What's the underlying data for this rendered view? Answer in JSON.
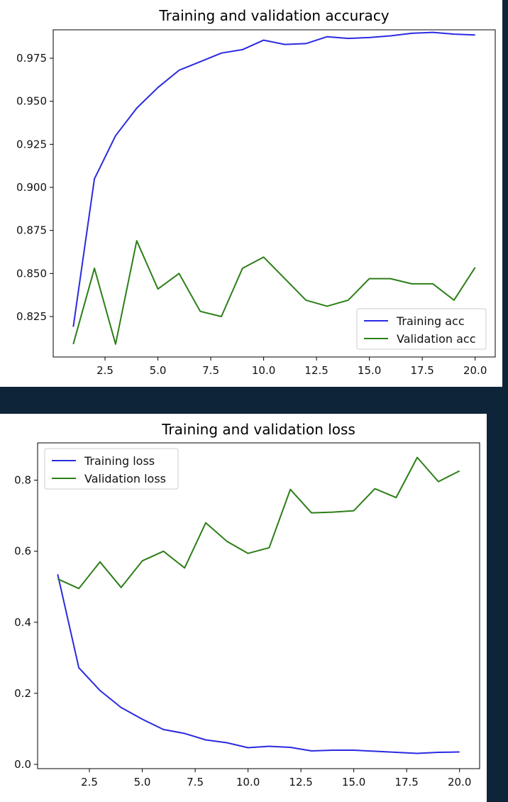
{
  "chart_data": [
    {
      "type": "line",
      "title": "Training and validation accuracy",
      "xlabel": "",
      "ylabel": "",
      "x": [
        1,
        2,
        3,
        4,
        5,
        6,
        7,
        8,
        9,
        10,
        11,
        12,
        13,
        14,
        15,
        16,
        17,
        18,
        19,
        20
      ],
      "xlim": [
        0.05,
        20.95
      ],
      "ylim": [
        0.8015,
        0.9915
      ],
      "xticks": [
        2.5,
        5.0,
        7.5,
        10.0,
        12.5,
        15.0,
        17.5,
        20.0
      ],
      "xtick_labels": [
        "2.5",
        "5.0",
        "7.5",
        "10.0",
        "12.5",
        "15.0",
        "17.5",
        "20.0"
      ],
      "yticks": [
        0.825,
        0.85,
        0.875,
        0.9,
        0.925,
        0.95,
        0.975
      ],
      "ytick_labels": [
        "0.825",
        "0.850",
        "0.875",
        "0.900",
        "0.925",
        "0.950",
        "0.975"
      ],
      "legend_position": "lower-right",
      "grid": false,
      "series": [
        {
          "name": "Training acc",
          "color": "#2a2ae0",
          "values": [
            0.819,
            0.905,
            0.93,
            0.946,
            0.958,
            0.968,
            0.973,
            0.978,
            0.98,
            0.9855,
            0.983,
            0.9835,
            0.9875,
            0.9865,
            0.987,
            0.988,
            0.9895,
            0.99,
            0.989,
            0.9885
          ]
        },
        {
          "name": "Validation acc",
          "color": "#2c7f18",
          "values": [
            0.809,
            0.853,
            0.809,
            0.869,
            0.841,
            0.85,
            0.828,
            0.825,
            0.853,
            0.8595,
            0.847,
            0.8345,
            0.831,
            0.8345,
            0.847,
            0.847,
            0.844,
            0.844,
            0.8345,
            0.8535
          ]
        }
      ]
    },
    {
      "type": "line",
      "title": "Training and validation loss",
      "xlabel": "",
      "ylabel": "",
      "x": [
        1,
        2,
        3,
        4,
        5,
        6,
        7,
        8,
        9,
        10,
        11,
        12,
        13,
        14,
        15,
        16,
        17,
        18,
        19,
        20
      ],
      "xlim": [
        0.05,
        20.95
      ],
      "ylim": [
        -0.012,
        0.905
      ],
      "xticks": [
        2.5,
        5.0,
        7.5,
        10.0,
        12.5,
        15.0,
        17.5,
        20.0
      ],
      "xtick_labels": [
        "2.5",
        "5.0",
        "7.5",
        "10.0",
        "12.5",
        "15.0",
        "17.5",
        "20.0"
      ],
      "yticks": [
        0.0,
        0.2,
        0.4,
        0.6,
        0.8
      ],
      "ytick_labels": [
        "0.0",
        "0.2",
        "0.4",
        "0.6",
        "0.8"
      ],
      "legend_position": "upper-left",
      "grid": false,
      "series": [
        {
          "name": "Training loss",
          "color": "#2a2ae0",
          "values": [
            0.535,
            0.272,
            0.208,
            0.16,
            0.127,
            0.098,
            0.087,
            0.069,
            0.061,
            0.047,
            0.051,
            0.048,
            0.038,
            0.04,
            0.04,
            0.037,
            0.034,
            0.031,
            0.034,
            0.035
          ]
        },
        {
          "name": "Validation loss",
          "color": "#2c7f18",
          "values": [
            0.522,
            0.495,
            0.57,
            0.498,
            0.573,
            0.6,
            0.553,
            0.68,
            0.628,
            0.594,
            0.61,
            0.774,
            0.708,
            0.71,
            0.714,
            0.776,
            0.751,
            0.864,
            0.796,
            0.826
          ]
        }
      ]
    }
  ]
}
